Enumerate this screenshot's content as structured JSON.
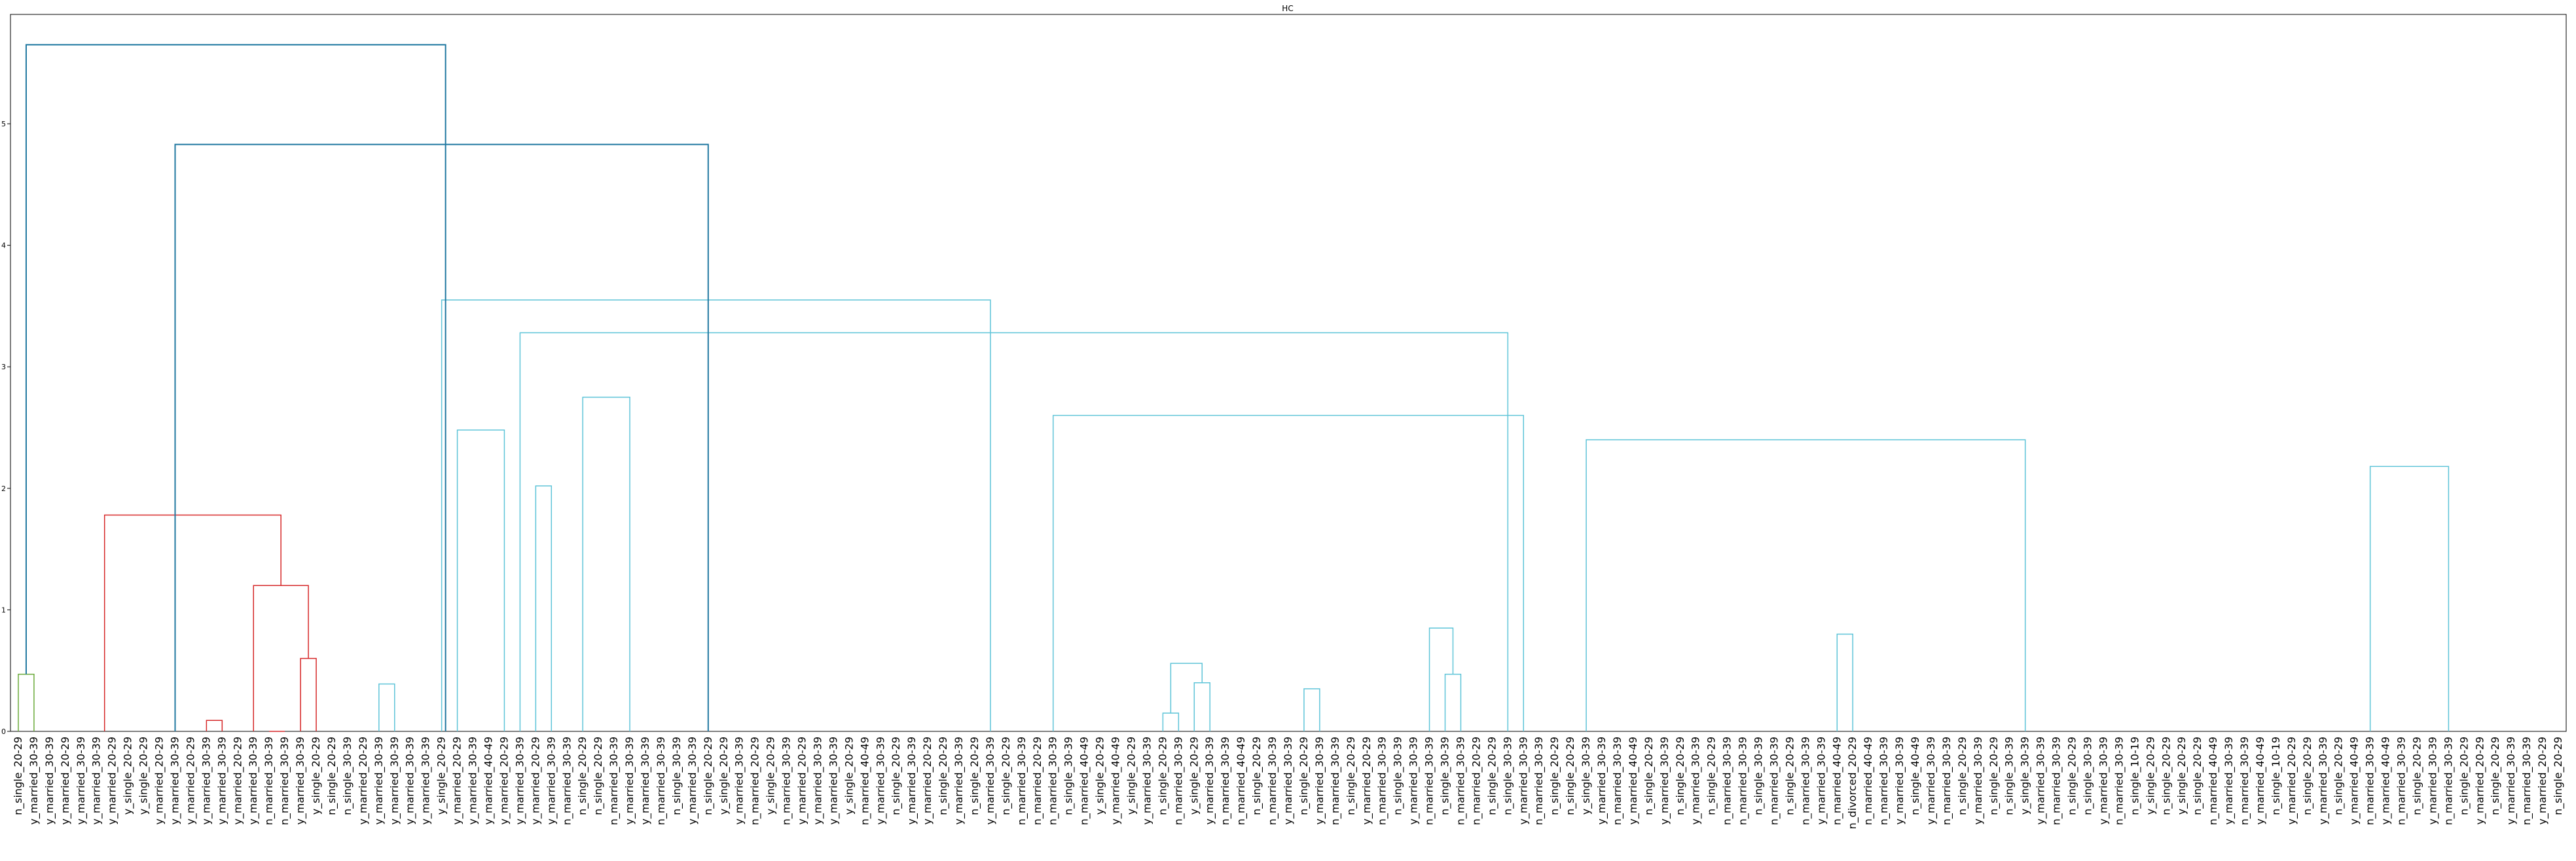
{
  "chart_data": {
    "type": "dendrogram",
    "title": "HC",
    "xlabel": "",
    "ylabel": "",
    "ylim": [
      0,
      5.9
    ],
    "yticks": [
      0,
      1,
      2,
      3,
      4,
      5
    ],
    "grid": false,
    "colors": {
      "green_cluster": "#6aaa3a",
      "red_cluster": "#d62728",
      "cyan_cluster": "#5ec4d8",
      "above_threshold": "#1f77a0",
      "axis": "#000000"
    },
    "leaf_labels": [
      "n_single_20-29",
      "y_married_30-39",
      "y_married_30-39",
      "y_married_20-29",
      "y_married_30-39",
      "y_married_30-39",
      "y_married_20-29",
      "y_single_20-29",
      "y_single_20-29",
      "y_married_20-29",
      "y_married_30-39",
      "y_married_20-29",
      "y_married_30-39",
      "y_married_30-39",
      "y_married_20-29",
      "y_married_30-39",
      "n_married_30-39",
      "n_married_30-39",
      "y_married_30-39",
      "y_single_20-29",
      "n_single_20-29",
      "n_single_30-39",
      "y_married_20-29",
      "y_married_30-39",
      "y_married_30-39",
      "y_married_30-39",
      "y_married_30-39",
      "y_single_20-29",
      "y_married_20-29",
      "y_married_30-39",
      "y_married_40-49",
      "y_married_20-29",
      "y_married_30-39",
      "y_married_20-29",
      "y_married_30-39",
      "n_married_30-39",
      "n_single_20-29",
      "n_single_20-29",
      "n_married_30-39",
      "y_married_30-39",
      "y_married_30-39",
      "n_married_30-39",
      "n_single_30-39",
      "y_married_30-39",
      "n_single_20-29",
      "y_single_20-29",
      "y_married_30-39",
      "n_married_20-29",
      "y_single_20-29",
      "n_married_30-39",
      "y_married_20-29",
      "y_married_30-39",
      "y_married_30-39",
      "y_single_20-29",
      "n_married_40-49",
      "y_married_30-39",
      "n_single_20-29",
      "y_married_30-39",
      "y_married_20-29",
      "n_single_20-29",
      "y_married_30-39",
      "n_single_20-29",
      "y_married_30-39",
      "n_single_20-29",
      "n_married_30-39",
      "n_married_20-29",
      "n_married_30-39",
      "n_single_30-39",
      "n_married_40-49",
      "y_single_20-29",
      "y_married_40-49",
      "y_single_20-29",
      "y_married_30-39",
      "n_single_20-29",
      "n_married_30-39",
      "y_single_20-29",
      "y_married_30-39",
      "n_married_30-39",
      "n_married_40-49",
      "n_single_20-29",
      "n_married_30-39",
      "y_married_30-39",
      "n_single_20-29",
      "y_married_30-39",
      "n_married_30-39",
      "n_single_20-29",
      "y_married_20-29",
      "n_married_30-39",
      "n_single_30-39",
      "y_married_30-39",
      "n_married_30-39",
      "n_single_30-39",
      "n_married_30-39",
      "n_married_20-29",
      "n_single_20-29",
      "n_single_30-39",
      "y_married_30-39",
      "n_married_30-39",
      "n_single_20-29",
      "n_single_20-29",
      "y_single_30-39",
      "y_married_30-39",
      "n_married_30-39",
      "y_married_40-49",
      "n_single_20-29",
      "y_married_30-39",
      "n_single_20-29",
      "y_married_30-39",
      "n_single_20-29",
      "n_married_30-39",
      "n_married_30-39",
      "n_single_30-39",
      "n_married_30-39",
      "n_single_20-29",
      "n_married_30-39",
      "y_married_30-39",
      "n_married_40-49",
      "n_divorced_20-29",
      "n_married_40-49",
      "n_married_30-39",
      "y_married_30-39",
      "n_single_40-49",
      "y_married_30-39",
      "n_married_30-39",
      "n_single_20-29",
      "y_married_30-39",
      "n_single_20-29",
      "n_single_30-39",
      "y_single_30-39",
      "y_married_30-39",
      "n_married_30-39",
      "n_single_20-29",
      "n_single_30-39",
      "y_married_30-39",
      "n_married_30-39",
      "n_single_10-19",
      "y_single_20-29",
      "n_single_20-29",
      "y_single_20-29",
      "n_single_20-29",
      "n_married_40-49",
      "y_married_30-39",
      "n_married_30-39",
      "y_married_40-49",
      "n_single_10-19",
      "y_married_20-29",
      "n_single_20-29",
      "y_married_30-39",
      "n_single_20-29",
      "y_married_40-49",
      "n_married_30-39",
      "y_married_40-49",
      "n_married_30-39",
      "n_single_20-29",
      "y_married_30-39",
      "n_married_30-39",
      "n_single_20-29",
      "y_married_20-29",
      "n_single_20-29",
      "y_married_30-39",
      "n_married_30-39",
      "y_married_20-29",
      "n_single_20-29"
    ],
    "merges": [
      {
        "a": 0,
        "b": 1,
        "height": 0.47,
        "color": "green"
      },
      {
        "a": 12,
        "b": 13,
        "height": 0.09,
        "color": "red"
      },
      {
        "a": 16,
        "b": 17,
        "height": 0.0,
        "color": "red"
      },
      {
        "a": 18,
        "b": 19,
        "height": 0.6,
        "color": "red"
      },
      {
        "a": 15,
        "b": 18.5,
        "height": 1.2,
        "color": "red"
      },
      {
        "a": 5.5,
        "b": 16.75,
        "height": 1.78,
        "color": "red"
      },
      {
        "a": 23,
        "b": 24,
        "height": 0.39,
        "color": "cyan"
      },
      {
        "a": 73,
        "b": 74,
        "height": 0.15,
        "color": "cyan"
      },
      {
        "a": 75,
        "b": 76,
        "height": 0.4,
        "color": "cyan"
      },
      {
        "a": 73.5,
        "b": 75.5,
        "height": 0.56,
        "color": "cyan"
      },
      {
        "a": 82,
        "b": 83,
        "height": 0.35,
        "color": "cyan"
      },
      {
        "a": 91,
        "b": 92,
        "height": 0.47,
        "color": "cyan"
      },
      {
        "a": 90,
        "b": 91.5,
        "height": 0.85,
        "color": "cyan"
      },
      {
        "a": 116,
        "b": 117,
        "height": 0.8,
        "color": "cyan"
      },
      {
        "a": 28,
        "b": 31,
        "height": 2.48,
        "color": "cyan"
      },
      {
        "a": 33,
        "b": 34,
        "height": 2.02,
        "color": "cyan"
      },
      {
        "a": 36,
        "b": 39,
        "height": 2.75,
        "color": "cyan"
      },
      {
        "a": 66,
        "b": 96,
        "height": 2.6,
        "color": "cyan"
      },
      {
        "a": 100,
        "b": 128,
        "height": 2.4,
        "color": "cyan"
      },
      {
        "a": 150,
        "b": 155,
        "height": 2.18,
        "color": "cyan"
      },
      {
        "a": 32,
        "b": 95,
        "height": 3.28,
        "color": "cyan"
      },
      {
        "a": 27,
        "b": 62,
        "height": 3.55,
        "color": "cyan"
      },
      {
        "a": 10,
        "b": 44,
        "height": 4.83,
        "color": "blue"
      },
      {
        "a": 0.5,
        "b": 27.25,
        "height": 5.65,
        "color": "blue"
      }
    ]
  }
}
